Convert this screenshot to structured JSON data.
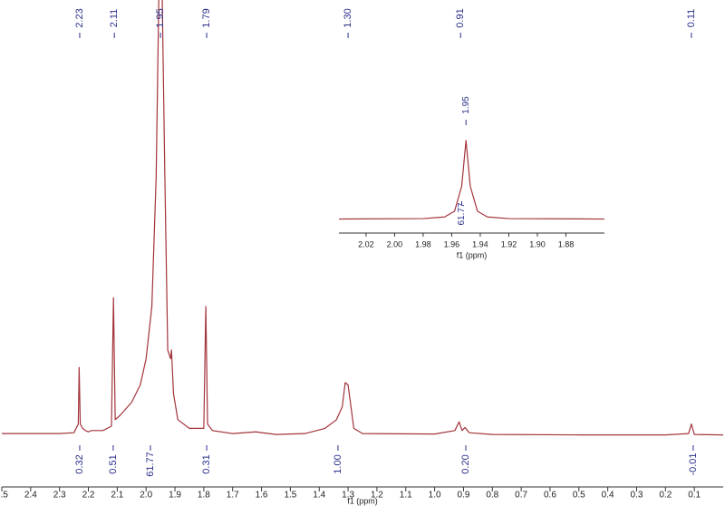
{
  "chart_data": [
    {
      "type": "line",
      "xlabel": "f1 (ppm)",
      "color": "#a3343b",
      "label_color": "#2a2f8a",
      "xlim": [
        2.5,
        0.0
      ],
      "ylim": [
        0,
        100
      ],
      "xticks": [
        {
          "value": 2.5,
          "label": "2.5"
        },
        {
          "value": 2.4,
          "label": "2.4"
        },
        {
          "value": 2.3,
          "label": "2.3"
        },
        {
          "value": 2.2,
          "label": "2.2"
        },
        {
          "value": 2.1,
          "label": "2.1"
        },
        {
          "value": 2.0,
          "label": "2.0"
        },
        {
          "value": 1.9,
          "label": "1.9"
        },
        {
          "value": 1.8,
          "label": "1.8"
        },
        {
          "value": 1.7,
          "label": "1.7"
        },
        {
          "value": 1.6,
          "label": "1.6"
        },
        {
          "value": 1.5,
          "label": "1.5"
        },
        {
          "value": 1.4,
          "label": "1.4"
        },
        {
          "value": 1.3,
          "label": "1.3"
        },
        {
          "value": 1.2,
          "label": "1.2"
        },
        {
          "value": 1.1,
          "label": "1.1"
        },
        {
          "value": 1.0,
          "label": "1.0"
        },
        {
          "value": 0.9,
          "label": "0.9"
        },
        {
          "value": 0.8,
          "label": "0.8"
        },
        {
          "value": 0.7,
          "label": "0.7"
        },
        {
          "value": 0.6,
          "label": "0.6"
        },
        {
          "value": 0.5,
          "label": "0.5"
        },
        {
          "value": 0.4,
          "label": "0.4"
        },
        {
          "value": 0.3,
          "label": "0.3"
        },
        {
          "value": 0.2,
          "label": "0.2"
        },
        {
          "value": 0.1,
          "label": "0.1"
        }
      ],
      "x": [
        2.5,
        2.3,
        2.25,
        2.235,
        2.232,
        2.228,
        2.22,
        2.21,
        2.2,
        2.19,
        2.15,
        2.12,
        2.113,
        2.107,
        2.09,
        2.05,
        2.02,
        2.0,
        1.98,
        1.965,
        1.955,
        1.945,
        1.935,
        1.925,
        1.915,
        1.912,
        1.905,
        1.89,
        1.85,
        1.8,
        1.793,
        1.787,
        1.77,
        1.7,
        1.62,
        1.55,
        1.45,
        1.38,
        1.34,
        1.32,
        1.31,
        1.3,
        1.29,
        1.28,
        1.25,
        1.0,
        0.93,
        0.915,
        0.905,
        0.895,
        0.88,
        0.8,
        0.5,
        0.2,
        0.12,
        0.11,
        0.1,
        0.0
      ],
      "values": [
        0.8,
        0.8,
        1,
        3,
        16,
        3,
        2,
        1.5,
        1.2,
        1.5,
        1.5,
        2.5,
        32,
        4,
        5,
        8,
        12,
        18,
        30,
        60,
        105,
        105,
        60,
        20,
        18,
        20,
        10,
        4,
        2,
        2,
        30,
        3,
        1.5,
        0.8,
        1.2,
        0.6,
        0.8,
        2,
        4,
        7,
        12.5,
        12,
        7,
        2,
        0.8,
        0.7,
        1.5,
        3.5,
        1.5,
        2.2,
        1,
        0.6,
        0.5,
        0.5,
        0.8,
        3,
        0.6,
        0.5
      ],
      "peak_labels": [
        {
          "value": 2.23,
          "label": "2.23"
        },
        {
          "value": 2.11,
          "label": "2.11"
        },
        {
          "value": 1.95,
          "label": "1.95"
        },
        {
          "value": 1.79,
          "label": "1.79"
        },
        {
          "value": 1.3,
          "label": "1.30"
        },
        {
          "value": 0.91,
          "label": "0.91"
        },
        {
          "value": 0.11,
          "label": "0.11"
        }
      ],
      "integrals": [
        {
          "value": 2.23,
          "label": "0.32"
        },
        {
          "value": 2.114,
          "label": "0.51"
        },
        {
          "value": 1.985,
          "label": "61.77"
        },
        {
          "value": 1.79,
          "label": "0.31"
        },
        {
          "value": 1.335,
          "label": "1.00"
        },
        {
          "value": 0.892,
          "label": "0.20"
        },
        {
          "value": 0.104,
          "label": "-0.01"
        }
      ]
    },
    {
      "type": "line",
      "xlabel": "f1 (ppm)",
      "color": "#a3343b",
      "label_color": "#2a2f8a",
      "xlim": [
        2.039,
        1.853
      ],
      "ylim": [
        0,
        100
      ],
      "xticks": [
        {
          "value": 2.02,
          "label": "2.02"
        },
        {
          "value": 2.0,
          "label": "2.00"
        },
        {
          "value": 1.98,
          "label": "1.98"
        },
        {
          "value": 1.96,
          "label": "1.96"
        },
        {
          "value": 1.94,
          "label": "1.94"
        },
        {
          "value": 1.92,
          "label": "1.92"
        },
        {
          "value": 1.9,
          "label": "1.90"
        },
        {
          "value": 1.88,
          "label": "1.88"
        }
      ],
      "x": [
        2.039,
        1.98,
        1.965,
        1.958,
        1.953,
        1.95,
        1.947,
        1.942,
        1.935,
        1.92,
        1.853
      ],
      "values": [
        0.5,
        1,
        3,
        10,
        40,
        95,
        40,
        10,
        3,
        1,
        0.5
      ],
      "peak_labels": [
        {
          "value": 1.95,
          "label": "1.95"
        }
      ],
      "integrals": [
        {
          "value": 1.953,
          "label": "61.77"
        }
      ]
    }
  ]
}
